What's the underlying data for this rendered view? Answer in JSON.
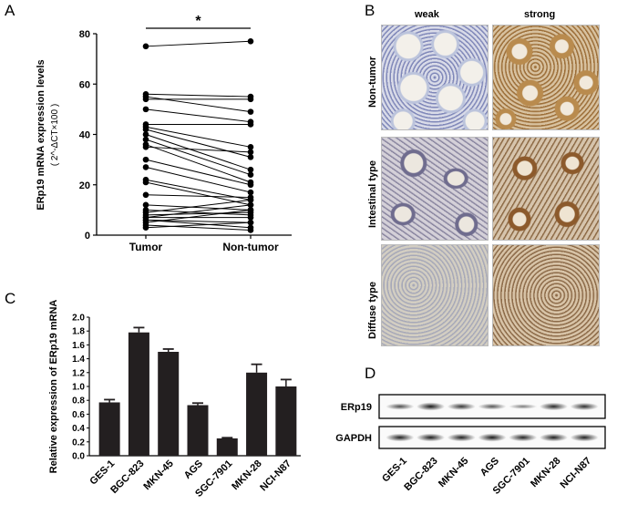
{
  "panel_a": {
    "letter": "A",
    "star": "*",
    "chart_data": {
      "type": "line",
      "x": [
        "Tumor",
        "Non-tumor"
      ],
      "ylim": [
        0,
        80
      ],
      "yticks": [
        0,
        20,
        40,
        60,
        80
      ],
      "ylabel": "ERp19 mRNA expression levels",
      "ylabel_unit": "( 2^-ΔCT×100 )",
      "pairs": [
        [
          75,
          77
        ],
        [
          56,
          55
        ],
        [
          55,
          49
        ],
        [
          54,
          54
        ],
        [
          50,
          45
        ],
        [
          44,
          44
        ],
        [
          43,
          35
        ],
        [
          42,
          31
        ],
        [
          40,
          26
        ],
        [
          38,
          24
        ],
        [
          36,
          21
        ],
        [
          35,
          33
        ],
        [
          30,
          20
        ],
        [
          27,
          17
        ],
        [
          22,
          14
        ],
        [
          21,
          12
        ],
        [
          16,
          15
        ],
        [
          12,
          10
        ],
        [
          10,
          8
        ],
        [
          9,
          14
        ],
        [
          8,
          9
        ],
        [
          7,
          7
        ],
        [
          7,
          12
        ],
        [
          6,
          5
        ],
        [
          6,
          3
        ],
        [
          5,
          10
        ],
        [
          4,
          2
        ],
        [
          3,
          5
        ]
      ]
    }
  },
  "panel_b": {
    "letter": "B",
    "col_labels": [
      "weak",
      "strong"
    ],
    "row_labels": [
      "Non-tumor",
      "Intestinal type",
      "Diffuse type"
    ]
  },
  "panel_c": {
    "letter": "C",
    "chart_data": {
      "type": "bar",
      "categories": [
        "GES-1",
        "BGC-823",
        "MKN-45",
        "AGS",
        "SGC-7901",
        "MKN-28",
        "NCI-N87"
      ],
      "values": [
        0.77,
        1.78,
        1.5,
        0.73,
        0.25,
        1.2,
        1.0
      ],
      "errors": [
        0.04,
        0.07,
        0.04,
        0.03,
        0.01,
        0.12,
        0.1
      ],
      "ylim": [
        0,
        2.0
      ],
      "yticks": [
        "0.0",
        "0.2",
        "0.4",
        "0.6",
        "0.8",
        "1.0",
        "1.2",
        "1.4",
        "1.6",
        "1.8",
        "2.0"
      ],
      "ylabel": "Relative expression of ERp19 mRNA"
    }
  },
  "panel_d": {
    "letter": "D",
    "band_labels": [
      "ERp19",
      "GAPDH"
    ],
    "lanes": [
      "GES-1",
      "BGC-823",
      "MKN-45",
      "AGS",
      "SGC-7901",
      "MKN-28",
      "NCI-N87"
    ],
    "erp19_intensity": [
      0.6,
      0.95,
      0.75,
      0.55,
      0.3,
      0.85,
      0.8
    ],
    "gapdh_intensity": [
      0.9,
      0.92,
      0.9,
      0.95,
      0.88,
      0.92,
      0.9
    ]
  }
}
